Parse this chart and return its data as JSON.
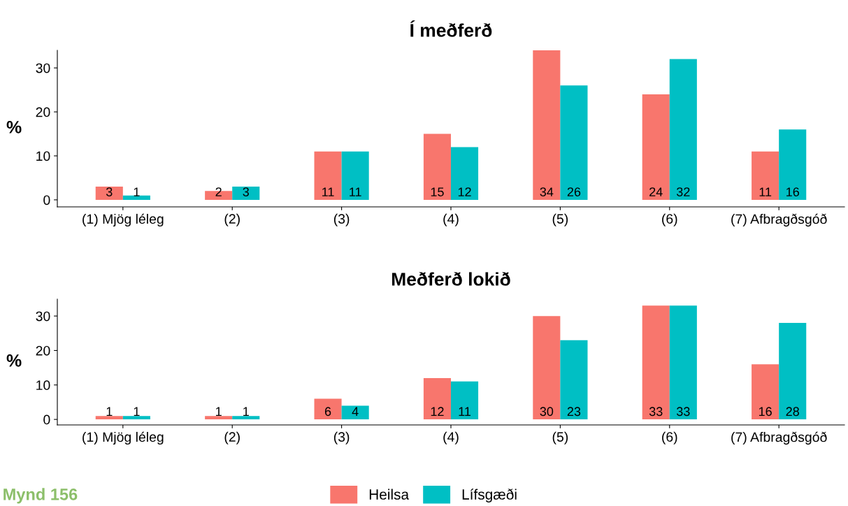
{
  "chart_data": [
    {
      "type": "bar",
      "title": "Í meðferð",
      "ylabel": "%",
      "categories": [
        "(1) Mjög léleg",
        "(2)",
        "(3)",
        "(4)",
        "(5)",
        "(6)",
        "(7) Afbragðsgóð"
      ],
      "series": [
        {
          "color": "#f8766d",
          "values": [
            3,
            2,
            11,
            15,
            34,
            24,
            11
          ]
        },
        {
          "color": "#00bfc4",
          "values": [
            1,
            3,
            11,
            12,
            26,
            32,
            16
          ]
        }
      ],
      "ylim": [
        -1.6,
        34
      ],
      "yticks": [
        0,
        10,
        20,
        30
      ],
      "grid": false,
      "data_labels": true
    },
    {
      "type": "bar",
      "title": "Meðferð lokið",
      "ylabel": "%",
      "categories": [
        "(1) Mjög léleg",
        "(2)",
        "(3)",
        "(4)",
        "(5)",
        "(6)",
        "(7) Afbragðsgóð"
      ],
      "series": [
        {
          "name": "Heilsa",
          "color": "#f8766d",
          "values": [
            1,
            1,
            6,
            12,
            30,
            33,
            16
          ]
        },
        {
          "name": "Lífsgæði",
          "color": "#00bfc4",
          "values": [
            1,
            1,
            4,
            11,
            23,
            33,
            28
          ]
        }
      ],
      "ylim": [
        -1.6,
        34.9
      ],
      "yticks": [
        0,
        10,
        20,
        30
      ],
      "grid": false,
      "legend": "bottom",
      "data_labels": true,
      "annotations": [
        "Mynd 156"
      ]
    }
  ]
}
